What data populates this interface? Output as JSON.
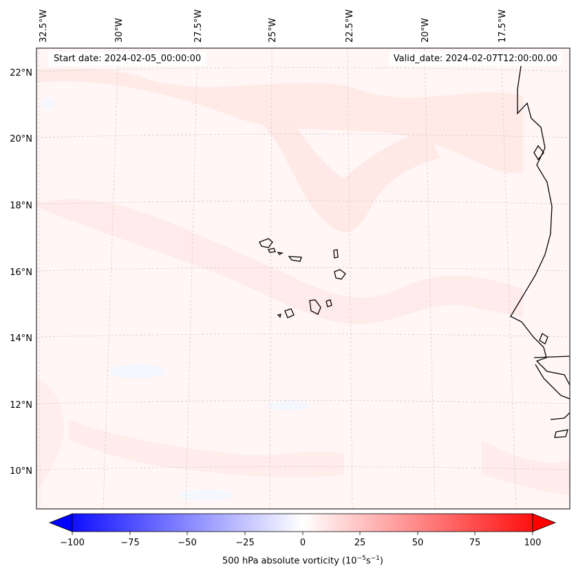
{
  "header": {
    "start_date": "Start date: 2024-02-05_00:00:00",
    "valid_date": "Valid_date: 2024-02-07T12:00:00.00"
  },
  "map": {
    "projection": "conic, lon 32.5°W–16°W, lat 9°N–22.8°N",
    "lon_labels": [
      "32.5°W",
      "30°W",
      "27.5°W",
      "25°W",
      "22.5°W",
      "20°W",
      "17.5°W"
    ],
    "lat_labels": [
      "22°N",
      "20°N",
      "18°N",
      "16°N",
      "14°N",
      "12°N",
      "10°N"
    ],
    "grid": true,
    "field": "500 hPa absolute vorticity",
    "colormap": "bwr"
  },
  "colorbar": {
    "ticks": [
      "−100",
      "−75",
      "−50",
      "−25",
      "0",
      "25",
      "50",
      "75",
      "100"
    ],
    "label_text": "500 hPa absolute vorticity (10",
    "label_exp1": "−5",
    "label_mid": "s",
    "label_exp2": "−1",
    "label_end": ")",
    "range": [
      -100,
      100
    ],
    "extend": "both"
  },
  "colors": {
    "low": "#0000ff",
    "mid": "#ffffff",
    "high": "#ff0000",
    "field_base": "#fff6f5",
    "field_light": "#ffe8e6",
    "field_blue": "#f4f6ff"
  }
}
